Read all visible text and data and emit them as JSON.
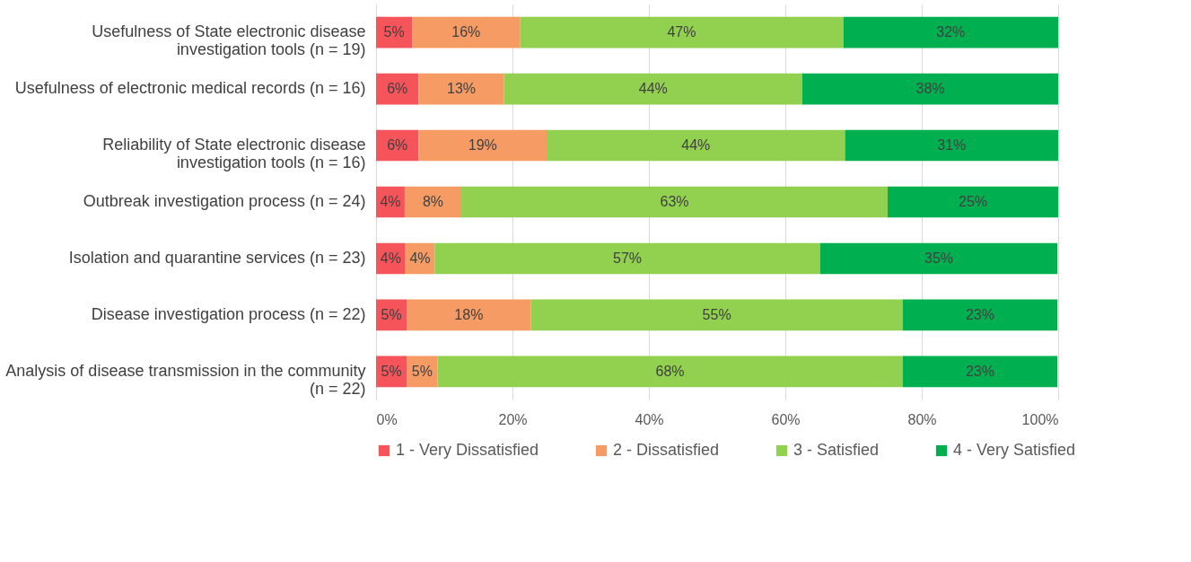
{
  "chart_data": {
    "type": "bar",
    "orientation": "horizontal",
    "stacked": true,
    "categories": [
      "Usefulness of State electronic disease investigation tools (n = 19)",
      "Usefulness of electronic medical records (n = 16)",
      "Reliability of State electronic disease investigation tools (n = 16)",
      "Outbreak investigation process (n = 24)",
      "Isolation and quarantine services (n = 23)",
      "Disease investigation process (n = 22)",
      "Analysis of disease transmission in the community (n = 22)"
    ],
    "series": [
      {
        "name": "1 - Very Dissatisfied",
        "color": "#f4545a",
        "values": [
          5.3,
          6.25,
          6.25,
          4.2,
          4.3,
          4.5,
          4.5
        ],
        "value_labels": [
          "5%",
          "6%",
          "6%",
          "4%",
          "4%",
          "5%",
          "5%"
        ]
      },
      {
        "name": "2 - Dissatisfied",
        "color": "#f79b65",
        "values": [
          15.8,
          12.5,
          18.75,
          8.3,
          4.3,
          18.2,
          4.5
        ],
        "value_labels": [
          "16%",
          "13%",
          "19%",
          "8%",
          "4%",
          "18%",
          "5%"
        ]
      },
      {
        "name": "3 - Satisfied",
        "color": "#92d050",
        "values": [
          47.4,
          43.75,
          43.75,
          62.5,
          56.5,
          54.5,
          68.2
        ],
        "value_labels": [
          "47%",
          "44%",
          "44%",
          "63%",
          "57%",
          "55%",
          "68%"
        ]
      },
      {
        "name": "4 - Very Satisfied",
        "color": "#00b050",
        "values": [
          31.5,
          37.5,
          31.25,
          25,
          34.8,
          22.7,
          22.7
        ],
        "value_labels": [
          "32%",
          "38%",
          "31%",
          "25%",
          "35%",
          "23%",
          "23%"
        ]
      }
    ],
    "xlim": [
      0,
      100
    ],
    "xticks": [
      {
        "value": 0,
        "label": "0%"
      },
      {
        "value": 20,
        "label": "20%"
      },
      {
        "value": 40,
        "label": "40%"
      },
      {
        "value": 60,
        "label": "60%"
      },
      {
        "value": 80,
        "label": "80%"
      },
      {
        "value": 100,
        "label": "100%"
      }
    ],
    "grid": "x",
    "legend": "bottom"
  }
}
